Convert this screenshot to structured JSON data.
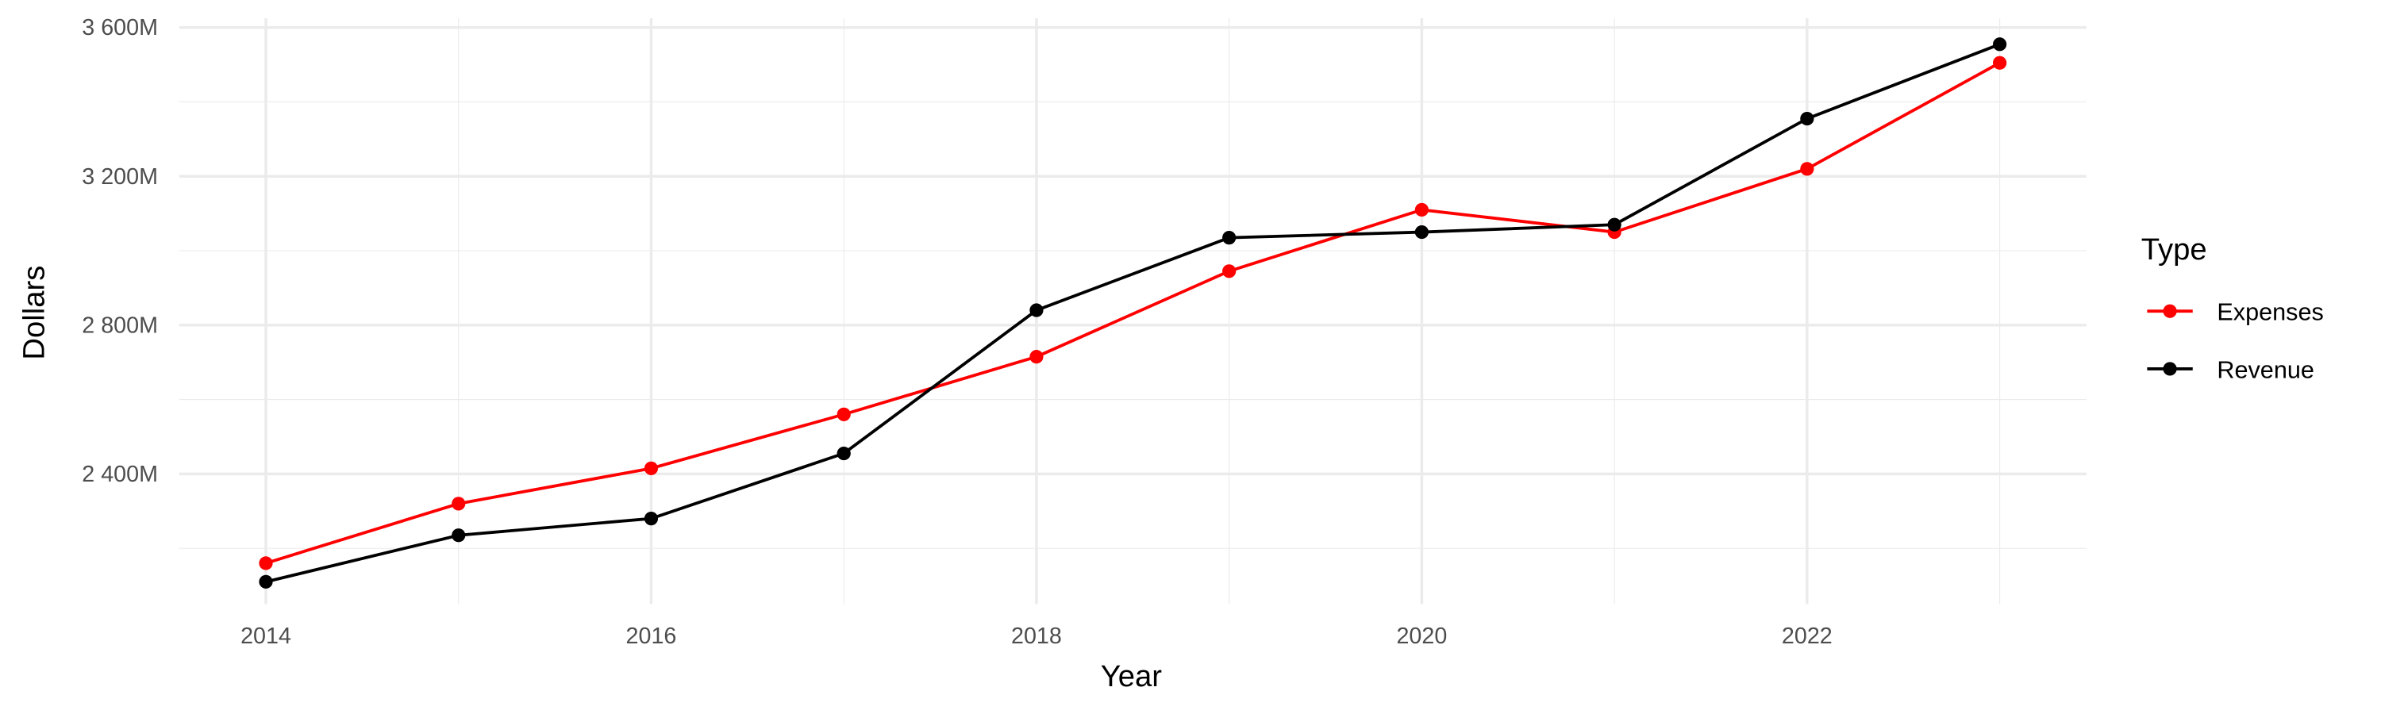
{
  "chart_data": {
    "type": "line",
    "x_label": "Year",
    "y_label": "Dollars",
    "legend_title": "Type",
    "legend_position": "right",
    "grid": true,
    "x": [
      2014,
      2015,
      2016,
      2017,
      2018,
      2019,
      2020,
      2021,
      2022,
      2023
    ],
    "xlim": [
      2013.55,
      2023.45
    ],
    "xticks": [
      2014,
      2016,
      2018,
      2020,
      2022
    ],
    "ylim": [
      2050000000,
      3625000000
    ],
    "yticks": [
      {
        "value": 2400000000,
        "label": "2 400M"
      },
      {
        "value": 2800000000,
        "label": "2 800M"
      },
      {
        "value": 3200000000,
        "label": "3 200M"
      },
      {
        "value": 3600000000,
        "label": "3 600M"
      }
    ],
    "series": [
      {
        "name": "Expenses",
        "color": "#ff0000",
        "values": [
          2160000000,
          2320000000,
          2415000000,
          2560000000,
          2715000000,
          2945000000,
          3110000000,
          3050000000,
          3220000000,
          3505000000
        ]
      },
      {
        "name": "Revenue",
        "color": "#000000",
        "values": [
          2110000000,
          2235000000,
          2280000000,
          2455000000,
          2840000000,
          3035000000,
          3050000000,
          3070000000,
          3355000000,
          3555000000
        ]
      }
    ]
  }
}
